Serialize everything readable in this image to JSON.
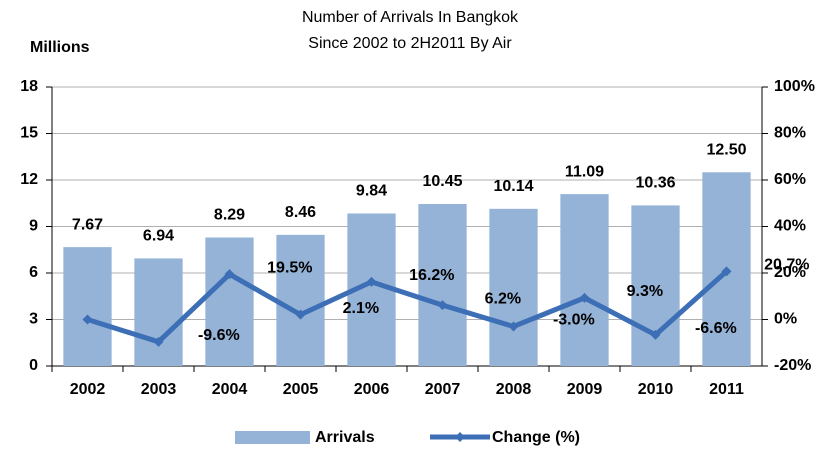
{
  "chart_data": {
    "type": "bar-line",
    "title": "Number of Arrivals In Bangkok",
    "subtitle": "Since 2002 to 2H2011 By Air",
    "y_label": "Millions",
    "categories": [
      "2002",
      "2003",
      "2004",
      "2005",
      "2006",
      "2007",
      "2008",
      "2009",
      "2010",
      "2011"
    ],
    "series": [
      {
        "name": "Arrivals",
        "type": "bar",
        "color": "#95b3d7",
        "values": [
          7.67,
          6.94,
          8.29,
          8.46,
          9.84,
          10.45,
          10.14,
          11.09,
          10.36,
          12.5
        ],
        "value_labels": [
          "7.67",
          "6.94",
          "8.29",
          "8.46",
          "9.84",
          "10.45",
          "10.14",
          "11.09",
          "10.36",
          "12.50"
        ]
      },
      {
        "name": "Change (%)",
        "type": "line",
        "axis": "y2",
        "color": "#3d6fb6",
        "values": [
          0,
          -9.6,
          19.5,
          2.1,
          16.2,
          6.2,
          -3.0,
          9.3,
          -6.6,
          20.7
        ],
        "value_labels": [
          null,
          "-9.6%",
          "19.5%",
          "2.1%",
          "16.2%",
          "6.2%",
          "-3.0%",
          "9.3%",
          "-6.6%",
          "20.7%"
        ]
      }
    ],
    "ylim": [
      0,
      18
    ],
    "yticks": [
      0,
      3,
      6,
      9,
      12,
      15,
      18
    ],
    "y2lim": [
      -20,
      100
    ],
    "y2ticks": [
      {
        "value": -20,
        "label": "-20%"
      },
      {
        "value": 0,
        "label": "0%"
      },
      {
        "value": 20,
        "label": "20%"
      },
      {
        "value": 40,
        "label": "40%"
      },
      {
        "value": 60,
        "label": "60%"
      },
      {
        "value": 80,
        "label": "80%"
      },
      {
        "value": 100,
        "label": "100%"
      }
    ],
    "grid": true,
    "legend": "bottom"
  }
}
